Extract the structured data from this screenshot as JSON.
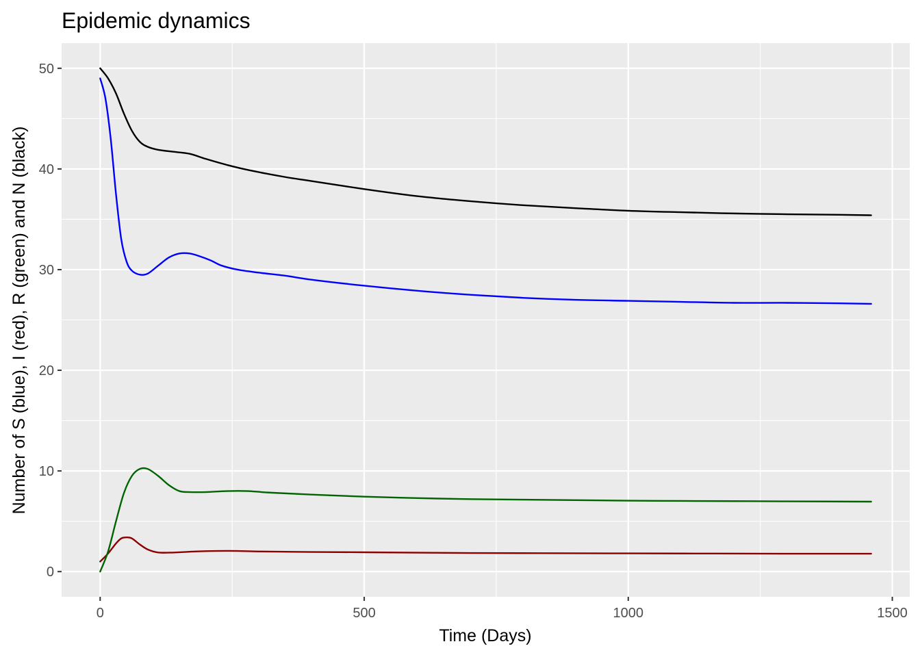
{
  "chart_data": {
    "type": "line",
    "title": "Epidemic dynamics",
    "xlabel": "Time (Days)",
    "ylabel": "Number of S (blue), I (red), R (green) and N (black)",
    "xlim": [
      -73,
      1533
    ],
    "ylim": [
      -2.5,
      52.5
    ],
    "x_ticks": [
      0,
      500,
      1000,
      1500
    ],
    "y_ticks": [
      0,
      10,
      20,
      30,
      40,
      50
    ],
    "x_tick_labels": [
      "0",
      "500",
      "1000",
      "1500"
    ],
    "y_tick_labels": [
      "0",
      "10",
      "20",
      "30",
      "40",
      "50"
    ],
    "grid": true,
    "background": "#ebebeb",
    "series": [
      {
        "key": "S",
        "color": "#0000ff",
        "points": [
          [
            0,
            49
          ],
          [
            10,
            47
          ],
          [
            20,
            43
          ],
          [
            30,
            37.5
          ],
          [
            40,
            33
          ],
          [
            50,
            30.8
          ],
          [
            60,
            29.9
          ],
          [
            75,
            29.5
          ],
          [
            90,
            29.6
          ],
          [
            110,
            30.4
          ],
          [
            130,
            31.2
          ],
          [
            150,
            31.6
          ],
          [
            170,
            31.6
          ],
          [
            190,
            31.3
          ],
          [
            210,
            30.9
          ],
          [
            230,
            30.4
          ],
          [
            260,
            30.0
          ],
          [
            300,
            29.7
          ],
          [
            350,
            29.4
          ],
          [
            400,
            29.0
          ],
          [
            500,
            28.4
          ],
          [
            600,
            27.9
          ],
          [
            700,
            27.5
          ],
          [
            800,
            27.2
          ],
          [
            900,
            27.0
          ],
          [
            1000,
            26.9
          ],
          [
            1100,
            26.8
          ],
          [
            1200,
            26.7
          ],
          [
            1300,
            26.7
          ],
          [
            1400,
            26.65
          ],
          [
            1460,
            26.6
          ]
        ]
      },
      {
        "key": "I",
        "color": "#8b0000",
        "points": [
          [
            0,
            1
          ],
          [
            15,
            1.8
          ],
          [
            30,
            2.8
          ],
          [
            40,
            3.3
          ],
          [
            50,
            3.4
          ],
          [
            60,
            3.3
          ],
          [
            75,
            2.7
          ],
          [
            90,
            2.2
          ],
          [
            110,
            1.9
          ],
          [
            140,
            1.9
          ],
          [
            180,
            2.0
          ],
          [
            220,
            2.05
          ],
          [
            260,
            2.05
          ],
          [
            300,
            2.0
          ],
          [
            400,
            1.95
          ],
          [
            500,
            1.92
          ],
          [
            700,
            1.85
          ],
          [
            900,
            1.82
          ],
          [
            1100,
            1.8
          ],
          [
            1300,
            1.78
          ],
          [
            1460,
            1.78
          ]
        ]
      },
      {
        "key": "R",
        "color": "#006400",
        "points": [
          [
            0,
            0
          ],
          [
            15,
            2
          ],
          [
            30,
            5
          ],
          [
            45,
            7.8
          ],
          [
            60,
            9.5
          ],
          [
            75,
            10.2
          ],
          [
            90,
            10.2
          ],
          [
            110,
            9.5
          ],
          [
            130,
            8.6
          ],
          [
            150,
            8.0
          ],
          [
            170,
            7.9
          ],
          [
            200,
            7.9
          ],
          [
            240,
            8.0
          ],
          [
            280,
            8.0
          ],
          [
            320,
            7.85
          ],
          [
            400,
            7.65
          ],
          [
            500,
            7.45
          ],
          [
            600,
            7.3
          ],
          [
            700,
            7.2
          ],
          [
            800,
            7.15
          ],
          [
            900,
            7.1
          ],
          [
            1000,
            7.05
          ],
          [
            1100,
            7.02
          ],
          [
            1200,
            7.0
          ],
          [
            1300,
            6.98
          ],
          [
            1460,
            6.95
          ]
        ]
      },
      {
        "key": "N",
        "color": "#000000",
        "points": [
          [
            0,
            50
          ],
          [
            15,
            49
          ],
          [
            30,
            47.5
          ],
          [
            45,
            45.5
          ],
          [
            60,
            43.8
          ],
          [
            75,
            42.7
          ],
          [
            90,
            42.2
          ],
          [
            110,
            41.9
          ],
          [
            140,
            41.7
          ],
          [
            170,
            41.5
          ],
          [
            200,
            41.0
          ],
          [
            240,
            40.4
          ],
          [
            280,
            39.9
          ],
          [
            350,
            39.2
          ],
          [
            400,
            38.8
          ],
          [
            500,
            38.0
          ],
          [
            600,
            37.3
          ],
          [
            700,
            36.8
          ],
          [
            800,
            36.4
          ],
          [
            900,
            36.1
          ],
          [
            1000,
            35.85
          ],
          [
            1100,
            35.7
          ],
          [
            1200,
            35.58
          ],
          [
            1300,
            35.5
          ],
          [
            1400,
            35.45
          ],
          [
            1460,
            35.4
          ]
        ]
      }
    ]
  }
}
